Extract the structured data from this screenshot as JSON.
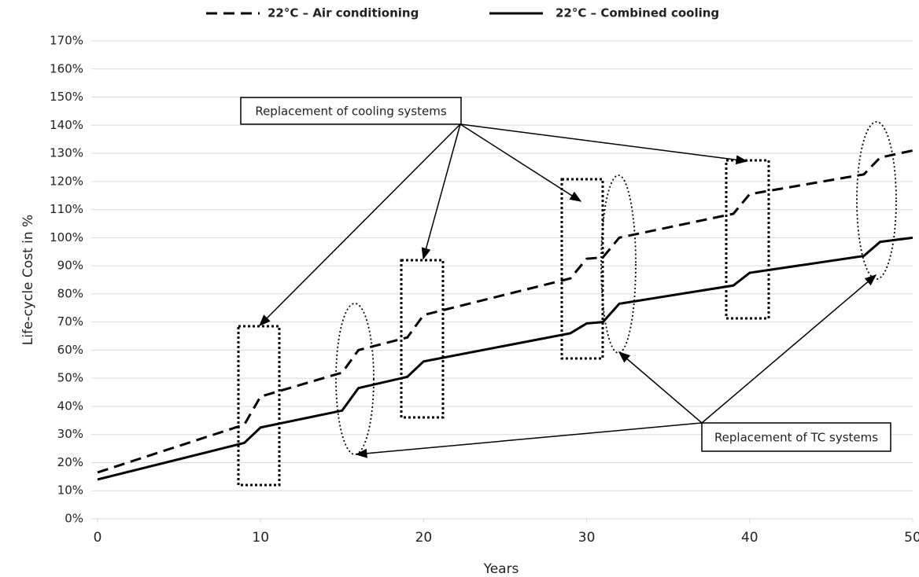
{
  "chart_data": {
    "type": "line",
    "y_label": "Life-cycle Cost in %",
    "x_label": "Years",
    "x": [
      0,
      9,
      10,
      15,
      16,
      19,
      20,
      29,
      30,
      31,
      32,
      39,
      40,
      47,
      48,
      50
    ],
    "series": [
      {
        "name": "22°C – Air conditioning",
        "color": "#000000",
        "dash": "dashed",
        "values": [
          16.5,
          33.5,
          43.5,
          52,
          60,
          64.5,
          72.5,
          85.5,
          92.5,
          93,
          100,
          108.5,
          115.5,
          122.5,
          128.5,
          131
        ]
      },
      {
        "name": "22°C – Combined cooling",
        "color": "#000000",
        "dash": "solid",
        "values": [
          14,
          27,
          32.5,
          38.5,
          46.5,
          50.5,
          56,
          66,
          69.5,
          70,
          76.5,
          83,
          87.5,
          93.5,
          98.5,
          100
        ]
      }
    ],
    "xlim": [
      0,
      50
    ],
    "xticks": [
      0,
      10,
      20,
      30,
      40,
      50
    ],
    "ylim": [
      0,
      170
    ],
    "yticks": [
      {
        "value": 0,
        "label": "0%"
      },
      {
        "value": 10,
        "label": "10%"
      },
      {
        "value": 20,
        "label": "20%"
      },
      {
        "value": 30,
        "label": "30%"
      },
      {
        "value": 40,
        "label": "40%"
      },
      {
        "value": 50,
        "label": "50%"
      },
      {
        "value": 60,
        "label": "60%"
      },
      {
        "value": 70,
        "label": "70%"
      },
      {
        "value": 80,
        "label": "80%"
      },
      {
        "value": 90,
        "label": "90%"
      },
      {
        "value": 100,
        "label": "100%"
      },
      {
        "value": 110,
        "label": "110%"
      },
      {
        "value": 120,
        "label": "120%"
      },
      {
        "value": 130,
        "label": "130%"
      },
      {
        "value": 140,
        "label": "140%"
      },
      {
        "value": 150,
        "label": "150%"
      },
      {
        "value": 160,
        "label": "160%"
      },
      {
        "value": 170,
        "label": "170%"
      }
    ],
    "grid": true,
    "legend": "top",
    "annotations": [
      "Replacement of cooling systems",
      "Replacement of TC systems"
    ]
  }
}
